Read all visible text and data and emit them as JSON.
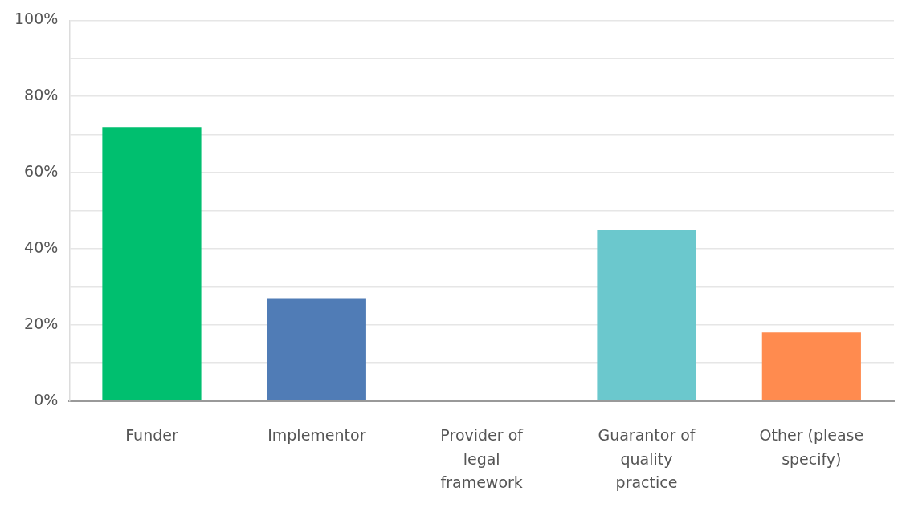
{
  "chart_data": {
    "type": "bar",
    "categories": [
      "Funder",
      "Implementor",
      "Provider of legal framework",
      "Guarantor of quality practice",
      "Other (please specify)"
    ],
    "values": [
      72,
      27,
      0,
      45,
      18
    ],
    "colors": [
      "#00bf6f",
      "#507cb6",
      "#a0a0a0",
      "#6bc8cd",
      "#ff8b4f"
    ],
    "ylim": [
      0,
      100
    ],
    "yticks": [
      {
        "value": 0,
        "label": "0%"
      },
      {
        "value": 10,
        "label": null
      },
      {
        "value": 20,
        "label": "20%"
      },
      {
        "value": 30,
        "label": null
      },
      {
        "value": 40,
        "label": "40%"
      },
      {
        "value": 50,
        "label": null
      },
      {
        "value": 60,
        "label": "60%"
      },
      {
        "value": 70,
        "label": null
      },
      {
        "value": 80,
        "label": "80%"
      },
      {
        "value": 90,
        "label": null
      },
      {
        "value": 100,
        "label": "100%"
      }
    ],
    "grid": "y",
    "legend": false
  }
}
